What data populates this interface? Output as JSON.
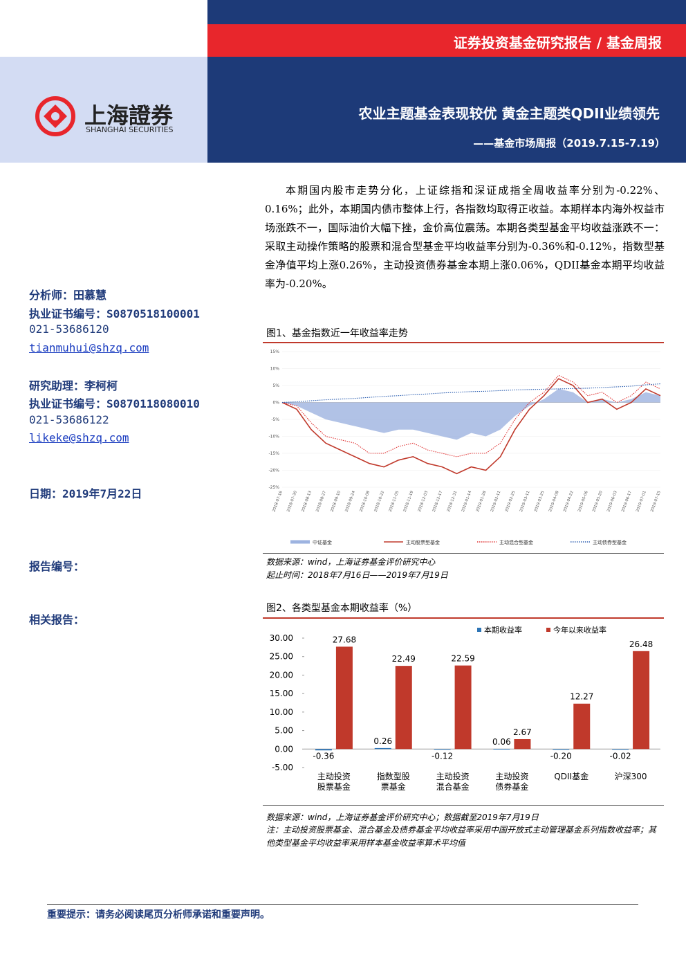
{
  "header": {
    "report_type": "证券投资基金研究报告 / 基金周报",
    "title": "农业主题基金表现较优 黄金主题类QDII业绩领先",
    "subtitle": "——基金市场周报（2019.7.15-7.19）",
    "logo_cn": "上海證券",
    "logo_en": "SHANGHAI SECURITIES"
  },
  "sidebar": {
    "analyst": "分析师：田慕慧",
    "analyst_cert": "执业证书编号：S0870518100001",
    "analyst_phone": "021-53686120",
    "analyst_email": "tianmuhui@shzq.com",
    "assistant": "研究助理：李柯柯",
    "assistant_cert": "执业证书编号：S0870118080010",
    "assistant_phone": "021-53686122",
    "assistant_email": "likeke@shzq.com",
    "date": "日期：2019年7月22日",
    "report_no": "报告编号：",
    "related": "相关报告："
  },
  "body": {
    "paragraph": "本期国内股市走势分化，上证综指和深证成指全周收益率分别为-0.22%、0.16%；此外，本期国内债市整体上行，各指数均取得正收益。本期样本内海外权益市场涨跌不一，国际油价大幅下挫，金价高位震荡。本期各类型基金平均收益涨跌不一：采取主动操作策略的股票和混合型基金平均收益率分别为-0.36%和-0.12%，指数型基金净值平均上涨0.26%，主动投资债券基金本期上涨0.06%，QDII基金本期平均收益率为-0.20%。"
  },
  "footer": {
    "notice": "重要提示：请务必阅读尾页分析师承诺和重要声明。"
  },
  "chart_data": [
    {
      "type": "line",
      "title": "图1、基金指数近一年收益率走势",
      "categories": [
        "2018-07-16",
        "2018-07-30",
        "2018-08-13",
        "2018-08-27",
        "2018-09-10",
        "2018-09-24",
        "2018-10-08",
        "2018-10-22",
        "2018-11-05",
        "2018-11-19",
        "2018-12-03",
        "2018-12-17",
        "2018-12-31",
        "2019-01-14",
        "2019-01-28",
        "2019-02-11",
        "2019-02-25",
        "2019-03-11",
        "2019-03-25",
        "2019-04-08",
        "2019-04-22",
        "2019-05-06",
        "2019-05-20",
        "2019-06-03",
        "2019-06-17",
        "2019-07-01",
        "2019-07-15"
      ],
      "series": [
        {
          "name": "中证基金",
          "color": "#9db3e0",
          "style": "area",
          "values": [
            0,
            -1,
            -3,
            -5,
            -6,
            -7,
            -8,
            -9,
            -8,
            -8,
            -9,
            -10,
            -11,
            -9,
            -10,
            -8,
            -4,
            -1,
            1,
            4,
            3,
            0,
            1,
            0,
            1,
            3,
            2
          ]
        },
        {
          "name": "主动股票型基金",
          "color": "#c0392b",
          "style": "solid",
          "values": [
            0,
            -2,
            -8,
            -12,
            -14,
            -16,
            -18,
            -19,
            -17,
            -16,
            -18,
            -19,
            -21,
            -19,
            -20,
            -16,
            -8,
            -2,
            2,
            7,
            5,
            0,
            1,
            -2,
            0,
            4,
            2
          ]
        },
        {
          "name": "主动混合型基金",
          "color": "#e03030",
          "style": "dotted",
          "values": [
            0,
            -1,
            -6,
            -10,
            -11,
            -12,
            -15,
            -15,
            -13,
            -12,
            -14,
            -15,
            -16,
            -15,
            -15,
            -12,
            -5,
            0,
            3,
            8,
            6,
            2,
            3,
            0,
            2,
            6,
            4
          ]
        },
        {
          "name": "主动债券型基金",
          "color": "#2a5db0",
          "style": "dotted",
          "values": [
            0,
            0.2,
            0.5,
            0.8,
            1,
            1.2,
            1.5,
            1.8,
            2,
            2.3,
            2.5,
            2.8,
            3,
            3.2,
            3.3,
            3.5,
            3.7,
            3.8,
            3.9,
            4,
            4.1,
            4.2,
            4.4,
            4.6,
            4.8,
            5.2,
            5.5
          ]
        }
      ],
      "ylim": [
        -25,
        15
      ],
      "yticks": [
        {
          "value": 15,
          "label": "15%"
        },
        {
          "value": 10,
          "label": "10%"
        },
        {
          "value": 5,
          "label": "5%"
        },
        {
          "value": 0,
          "label": "0%"
        },
        {
          "value": -5,
          "label": "-5%"
        },
        {
          "value": -10,
          "label": "-10%"
        },
        {
          "value": -15,
          "label": "-15%"
        },
        {
          "value": -20,
          "label": "-20%"
        },
        {
          "value": -25,
          "label": "-25%"
        }
      ],
      "grid": true,
      "notes": [
        "数据来源：wind，上海证券基金评价研究中心",
        "起止时间：2018年7月16日——2019年7月19日"
      ]
    },
    {
      "type": "bar",
      "title": "图2、各类型基金本期收益率（%）",
      "categories": [
        "主动投资股票基金",
        "指数型股票基金",
        "主动投资混合基金",
        "主动投资债券基金",
        "QDII基金",
        "沪深300"
      ],
      "series": [
        {
          "name": "本期收益率",
          "color": "#2e75b6",
          "values": [
            -0.36,
            0.26,
            -0.12,
            0.06,
            -0.2,
            -0.02
          ],
          "value_labels": [
            "-0.36",
            "0.26",
            "-0.12",
            "0.06",
            "-0.20",
            "-0.02"
          ]
        },
        {
          "name": "今年以来收益率",
          "color": "#c0392b",
          "values": [
            27.68,
            22.49,
            22.59,
            2.67,
            12.27,
            26.48
          ]
        }
      ],
      "ylim": [
        -5,
        30
      ],
      "yticks": [
        {
          "value": 30,
          "label": "30.00"
        },
        {
          "value": 25,
          "label": "25.00"
        },
        {
          "value": 20,
          "label": "20.00"
        },
        {
          "value": 15,
          "label": "15.00"
        },
        {
          "value": 10,
          "label": "10.00"
        },
        {
          "value": 5,
          "label": "5.00"
        },
        {
          "value": 0,
          "label": "0.00"
        },
        {
          "value": -5,
          "label": "-5.00"
        }
      ],
      "legend": "top-right",
      "notes": [
        "数据来源：wind，上海证券基金评价研究中心；数据截至2019年7月19日",
        "注：主动投资股票基金、混合基金及债券基金平均收益率采用中国开放式主动管理基金系列指数收益率；其他类型基金平均收益率采用样本基金收益率算术平均值"
      ]
    }
  ]
}
